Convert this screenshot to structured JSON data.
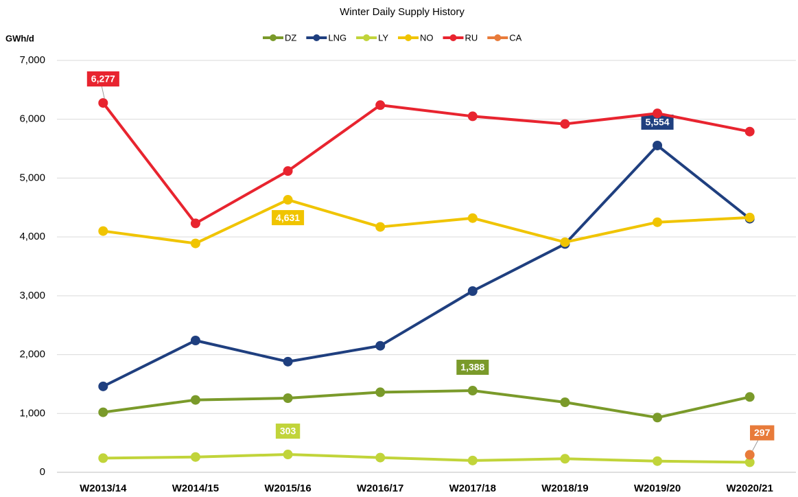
{
  "chart_data": {
    "type": "line",
    "title": "Winter Daily Supply History",
    "y_label": "GWh/d",
    "categories": [
      "W2013/14",
      "W2014/15",
      "W2015/16",
      "W2016/17",
      "W2017/18",
      "W2018/19",
      "W2019/20",
      "W2020/21"
    ],
    "ylim": [
      0,
      7000
    ],
    "yticks": [
      0,
      {
        "value": 1000,
        "label": "1,000"
      },
      {
        "value": 2000,
        "label": "2,000"
      },
      {
        "value": 3000,
        "label": "3,000"
      },
      {
        "value": 4000,
        "label": "4,000"
      },
      {
        "value": 5000,
        "label": "5,000"
      },
      {
        "value": 6000,
        "label": "6,000"
      },
      {
        "value": 7000,
        "label": "7,000"
      }
    ],
    "grid": true,
    "legend": "top",
    "series": [
      {
        "name": "DZ",
        "color": "#7a9a2a",
        "values": [
          1020,
          1230,
          1260,
          1360,
          1388,
          1190,
          930,
          1280
        ],
        "value_labels": [
          null,
          null,
          null,
          null,
          "1,388",
          null,
          null,
          null
        ]
      },
      {
        "name": "LNG",
        "color": "#1f3f7f",
        "values": [
          1460,
          2240,
          1880,
          2150,
          3080,
          3880,
          5554,
          4310
        ],
        "value_labels": [
          null,
          null,
          null,
          null,
          null,
          null,
          "5,554",
          null
        ]
      },
      {
        "name": "LY",
        "color": "#c1d43a",
        "values": [
          240,
          260,
          303,
          250,
          200,
          230,
          190,
          170
        ],
        "value_labels": [
          null,
          null,
          "303",
          null,
          null,
          null,
          null,
          null
        ]
      },
      {
        "name": "NO",
        "color": "#f0c400",
        "values": [
          4100,
          3890,
          4631,
          4170,
          4320,
          3910,
          4250,
          4330
        ],
        "value_labels": [
          null,
          null,
          "4,631",
          null,
          null,
          null,
          null,
          null
        ]
      },
      {
        "name": "RU",
        "color": "#e8242f",
        "values": [
          6277,
          4230,
          5120,
          6240,
          6050,
          5920,
          6100,
          5790
        ],
        "value_labels": [
          "6,277",
          null,
          null,
          null,
          null,
          null,
          null,
          null
        ]
      },
      {
        "name": "CA",
        "color": "#e87b3a",
        "values": [
          null,
          null,
          null,
          null,
          null,
          null,
          null,
          297
        ],
        "value_labels": [
          null,
          null,
          null,
          null,
          null,
          null,
          null,
          "297"
        ]
      }
    ]
  }
}
